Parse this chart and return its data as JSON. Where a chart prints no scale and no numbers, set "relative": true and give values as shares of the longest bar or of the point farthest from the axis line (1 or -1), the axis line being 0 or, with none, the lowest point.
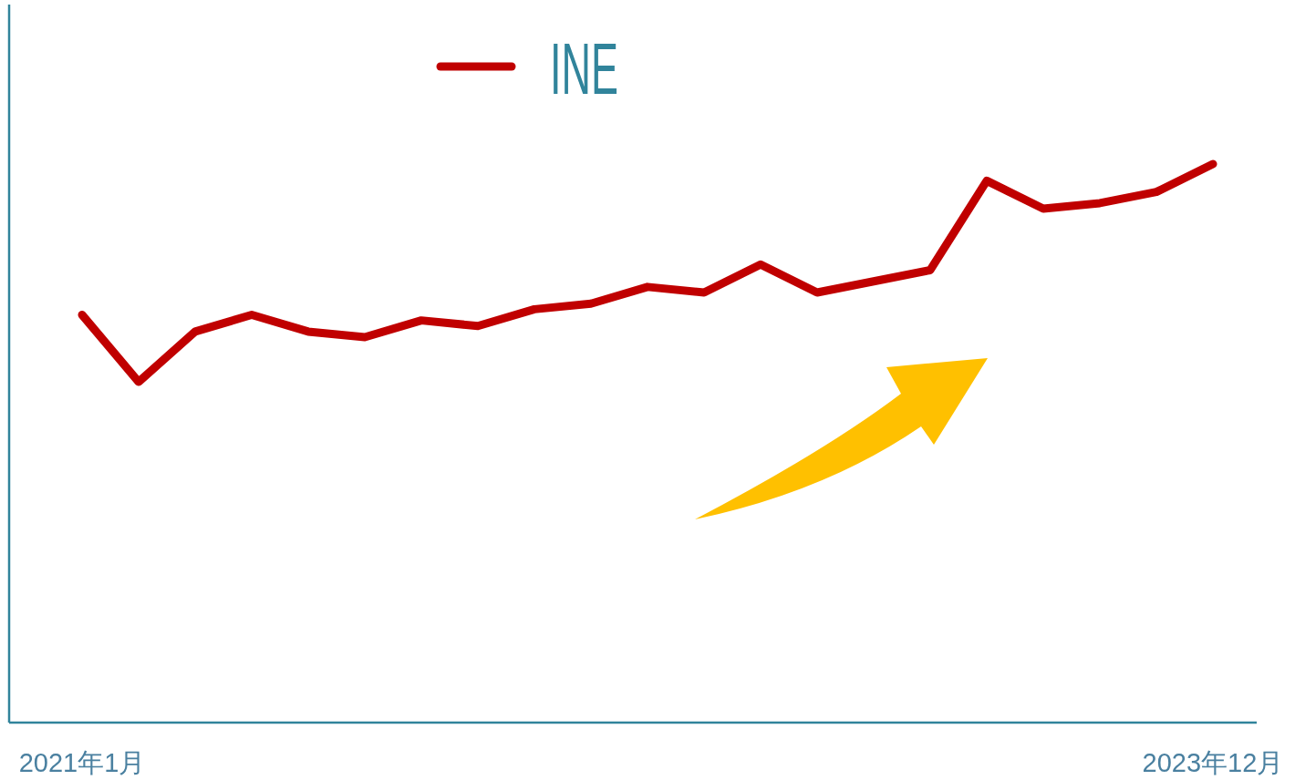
{
  "chart_data": {
    "type": "line",
    "relative": true,
    "legend": "top",
    "categories": [
      "2021年1月",
      null,
      null,
      null,
      null,
      null,
      null,
      null,
      null,
      null,
      null,
      null,
      null,
      null,
      null,
      null,
      null,
      null,
      null,
      null,
      "2023年12月"
    ],
    "series": [
      {
        "name": "INE",
        "color": "#c00000",
        "values": [
          0.73,
          0.61,
          0.7,
          0.73,
          0.7,
          0.69,
          0.72,
          0.71,
          0.74,
          0.75,
          0.78,
          0.77,
          0.82,
          0.77,
          0.79,
          0.81,
          0.97,
          0.92,
          0.93,
          0.95,
          1
        ]
      }
    ]
  }
}
